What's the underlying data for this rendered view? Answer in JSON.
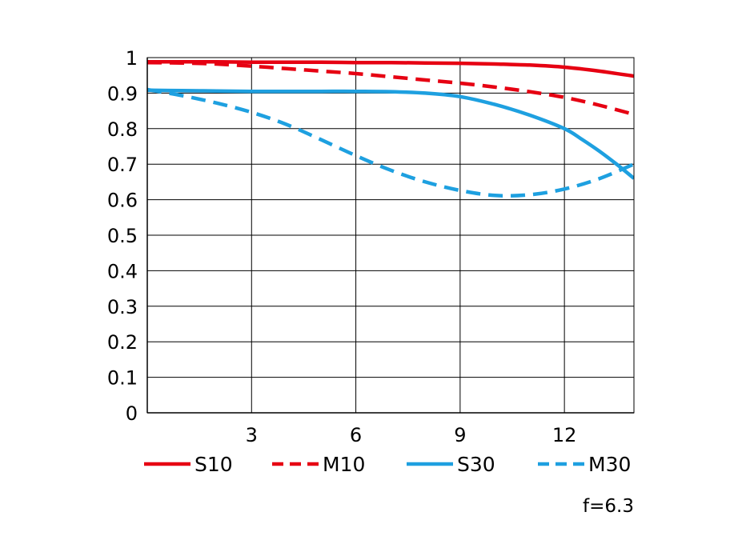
{
  "chart_data": {
    "type": "line",
    "title": "",
    "xlabel": "",
    "ylabel": "",
    "xlim": [
      0,
      14
    ],
    "ylim": [
      0,
      1
    ],
    "x_ticks": [
      3,
      6,
      9,
      12
    ],
    "y_ticks": [
      0,
      0.1,
      0.2,
      0.3,
      0.4,
      0.5,
      0.6,
      0.7,
      0.8,
      0.9,
      1
    ],
    "x_tick_labels": [
      "3",
      "6",
      "9",
      "12"
    ],
    "y_tick_labels": [
      "0",
      "0.1",
      "0.2",
      "0.3",
      "0.4",
      "0.5",
      "0.6",
      "0.7",
      "0.8",
      "0.9",
      "1"
    ],
    "grid": true,
    "legend_position": "bottom",
    "annotation": "f=6.3",
    "series": [
      {
        "name": "S10",
        "color": "#e60012",
        "dash": "solid",
        "x": [
          0,
          1,
          2,
          3,
          4,
          5,
          6,
          7,
          8,
          9,
          10,
          11,
          12,
          13,
          14
        ],
        "values": [
          0.988,
          0.988,
          0.988,
          0.987,
          0.987,
          0.987,
          0.986,
          0.986,
          0.985,
          0.984,
          0.982,
          0.979,
          0.973,
          0.962,
          0.948
        ]
      },
      {
        "name": "M10",
        "color": "#e60012",
        "dash": "dashed",
        "x": [
          0,
          1,
          2,
          3,
          4,
          5,
          6,
          7,
          8,
          9,
          10,
          11,
          12,
          13,
          14
        ],
        "values": [
          0.986,
          0.985,
          0.982,
          0.976,
          0.969,
          0.962,
          0.955,
          0.946,
          0.937,
          0.928,
          0.917,
          0.904,
          0.888,
          0.866,
          0.84
        ]
      },
      {
        "name": "S30",
        "color": "#1ea0e0",
        "dash": "solid",
        "x": [
          0,
          1,
          2,
          3,
          4,
          5,
          6,
          7,
          8,
          9,
          10,
          11,
          12,
          12.5,
          13,
          13.5,
          14
        ],
        "values": [
          0.908,
          0.907,
          0.906,
          0.905,
          0.905,
          0.905,
          0.905,
          0.904,
          0.9,
          0.89,
          0.868,
          0.838,
          0.8,
          0.77,
          0.737,
          0.7,
          0.66
        ]
      },
      {
        "name": "M30",
        "color": "#1ea0e0",
        "dash": "dashed",
        "x": [
          0,
          1,
          2,
          3,
          4,
          5,
          6,
          7,
          8,
          9,
          10,
          11,
          12,
          13,
          14
        ],
        "values": [
          0.91,
          0.893,
          0.872,
          0.846,
          0.812,
          0.769,
          0.724,
          0.683,
          0.65,
          0.626,
          0.612,
          0.614,
          0.63,
          0.659,
          0.7
        ]
      }
    ]
  }
}
